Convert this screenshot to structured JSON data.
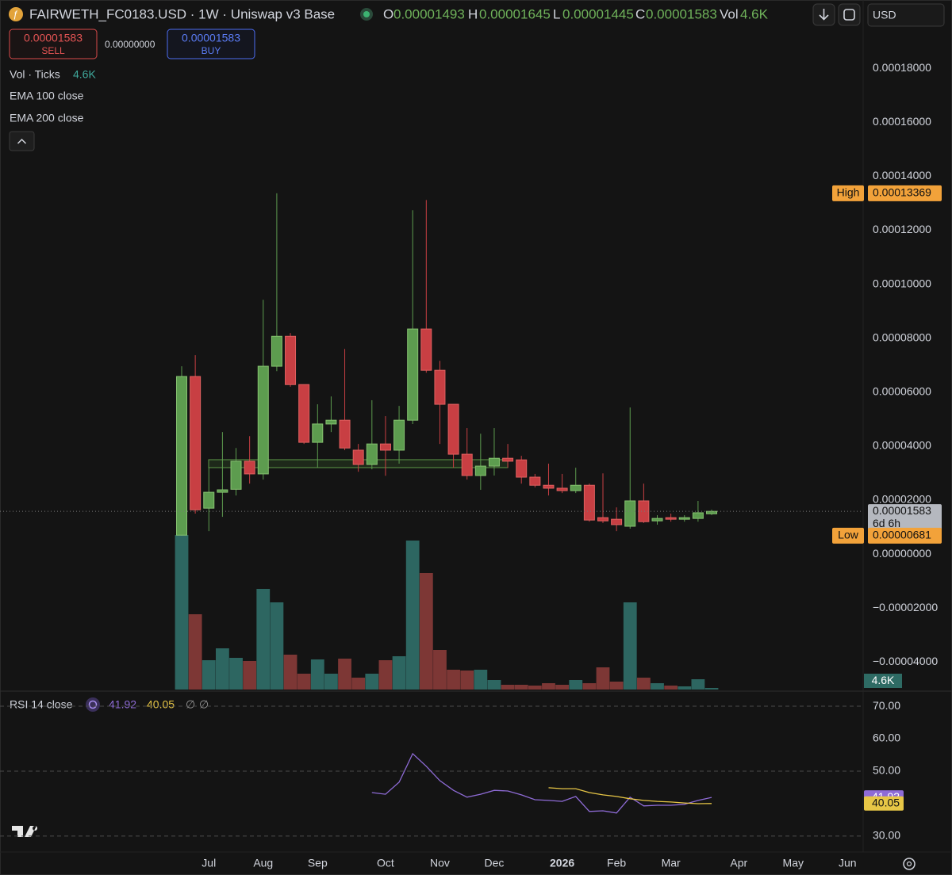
{
  "header": {
    "symbol": "FAIRWETH_FC0183.USD · 1W · Uniswap v3 Base",
    "ohlc_labels": [
      "O",
      "H",
      "L",
      "C"
    ],
    "vol_label": "Vol",
    "currency": "USD"
  },
  "trade": {
    "sell_price": "0.00001583",
    "sell": "SELL",
    "spread": "0.00000000",
    "buy_price": "0.00001583",
    "buy": "BUY"
  },
  "chart_data": [
    {
      "type": "candlestick",
      "indicators": [
        "EMA 100 close",
        "EMA 200 close"
      ],
      "open": [
        7e-06,
        6.58e-05,
        1.7e-05,
        2.29e-05,
        2.4e-05,
        3.44e-05,
        2.97e-05,
        6.96e-05,
        8.07e-05,
        6.28e-05,
        4.14e-05,
        4.82e-05,
        4.96e-05,
        3.85e-05,
        3.32e-05,
        4.08e-05,
        3.85e-05,
        4.96e-05,
        8.34e-05,
        6.81e-05,
        5.55e-05,
        3.7e-05,
        2.91e-05,
        3.26e-05,
        3.55e-05,
        3.49e-05,
        2.85e-05,
        2.55e-05,
        2.44e-05,
        2.35e-05,
        2.55e-05,
        1.35e-05,
        1.29e-05,
        1.03e-05,
        1.97e-05,
        1.23e-05,
        1.35e-05,
        1.29e-05,
        1.32e-05,
        1.493e-05
      ],
      "high": [
        6.96e-05,
        7.37e-05,
        3.2e-05,
        4.52e-05,
        3.93e-05,
        4.37e-05,
        9.42e-05,
        0.00013369,
        8.19e-05,
        6.28e-05,
        5.55e-05,
        5.84e-05,
        7.6e-05,
        4.08e-05,
        5.7e-05,
        5.11e-05,
        5.49e-05,
        0.0001274,
        0.0001312,
        7.16e-05,
        5.55e-05,
        4.67e-05,
        4.46e-05,
        4.67e-05,
        4.08e-05,
        3.64e-05,
        2.97e-05,
        3.35e-05,
        2.97e-05,
        3.2e-05,
        2.61e-05,
        2.99e-05,
        1.73e-05,
        5.43e-05,
        2.61e-05,
        1.44e-05,
        1.5e-05,
        1.44e-05,
        1.97e-05,
        1.645e-05
      ],
      "low": [
        6.81e-06,
        1.5e-05,
        8.5e-06,
        1.38e-05,
        2.17e-05,
        2.61e-05,
        2.76e-05,
        6.78e-05,
        6.2e-05,
        4.08e-05,
        3.2e-05,
        4.52e-05,
        3.85e-05,
        3.05e-05,
        3.14e-05,
        2.9e-05,
        3.35e-05,
        4.82e-05,
        6.72e-05,
        4.08e-05,
        3.2e-05,
        2.76e-05,
        2.38e-05,
        2.91e-05,
        3.2e-05,
        2.61e-05,
        2.47e-05,
        2.17e-05,
        2.26e-05,
        2.26e-05,
        1.2e-05,
        1.15e-05,
        8.5e-06,
        9.4e-06,
        1.15e-05,
        1.09e-05,
        1.2e-05,
        1.2e-05,
        1.2e-05,
        1.445e-05
      ],
      "close": [
        6.58e-05,
        1.64e-05,
        2.29e-05,
        2.38e-05,
        3.44e-05,
        2.97e-05,
        6.96e-05,
        8.07e-05,
        6.28e-05,
        4.14e-05,
        4.82e-05,
        4.96e-05,
        3.93e-05,
        3.32e-05,
        4.08e-05,
        3.85e-05,
        4.96e-05,
        8.34e-05,
        6.81e-05,
        5.55e-05,
        3.7e-05,
        2.91e-05,
        3.26e-05,
        3.55e-05,
        3.44e-05,
        2.85e-05,
        2.55e-05,
        2.44e-05,
        2.35e-05,
        2.55e-05,
        1.26e-05,
        1.23e-05,
        1.09e-05,
        1.97e-05,
        1.2e-05,
        1.32e-05,
        1.29e-05,
        1.35e-05,
        1.53e-05,
        1.583e-05
      ],
      "colors": {
        "up": "#5d9c4f",
        "down": "#c83f43"
      },
      "xlim": [
        -13.37,
        50.15
      ],
      "xticks": [
        {
          "value": 2,
          "label": "Jul"
        },
        {
          "value": 6,
          "label": "Aug"
        },
        {
          "value": 10,
          "label": "Sep"
        },
        {
          "value": 15,
          "label": "Oct"
        },
        {
          "value": 19,
          "label": "Nov"
        },
        {
          "value": 23,
          "label": "Dec"
        },
        {
          "value": 28,
          "label": "2026",
          "bold": true
        },
        {
          "value": 32,
          "label": "Feb"
        },
        {
          "value": 36,
          "label": "Mar"
        },
        {
          "value": 41,
          "label": "Apr"
        },
        {
          "value": 45,
          "label": "May"
        },
        {
          "value": 49,
          "label": "Jun"
        }
      ],
      "ylim": [
        -5.02e-05,
        0.0002053
      ],
      "yticks": [
        {
          "value": 0.00018,
          "label": "0.00018000"
        },
        {
          "value": 0.00016,
          "label": "0.00016000"
        },
        {
          "value": 0.00014,
          "label": "0.00014000"
        },
        {
          "value": 0.00012,
          "label": "0.00012000"
        },
        {
          "value": 0.0001,
          "label": "0.00010000"
        },
        {
          "value": 8e-05,
          "label": "0.00008000"
        },
        {
          "value": 6e-05,
          "label": "0.00006000"
        },
        {
          "value": 4e-05,
          "label": "0.00004000"
        },
        {
          "value": 2e-05,
          "label": "0.00002000"
        },
        {
          "value": 0,
          "label": "0.00000000"
        },
        {
          "value": -2e-05,
          "label": "−0.00002000"
        },
        {
          "value": -4e-05,
          "label": "−0.00004000"
        }
      ],
      "high_marker": {
        "label": "High",
        "value": 0.00013369
      },
      "low_marker": {
        "label": "Low",
        "value": 6.81e-06
      },
      "last_price": {
        "value": 1.583e-05,
        "countdown": "6d 6h"
      }
    },
    {
      "type": "bar",
      "title": "Vol · Ticks",
      "values": [
        448500,
        218500,
        85100,
        119600,
        92000,
        82800,
        292100,
        253000,
        101200,
        46000,
        87400,
        46000,
        89700,
        34500,
        46000,
        85100,
        96600,
        432400,
        338100,
        115000,
        57500,
        55200,
        57500,
        27600,
        13800,
        13800,
        11500,
        18400,
        13800,
        27600,
        18400,
        64400,
        23000,
        253000,
        34500,
        18400,
        11500,
        9200,
        29900,
        4600
      ],
      "value_labels": [
        null,
        null,
        null,
        null,
        null,
        null,
        null,
        null,
        null,
        null,
        null,
        null,
        null,
        null,
        null,
        null,
        null,
        null,
        null,
        null,
        null,
        null,
        null,
        null,
        null,
        null,
        null,
        null,
        null,
        null,
        null,
        null,
        null,
        null,
        null,
        null,
        null,
        null,
        null,
        "4.6K"
      ],
      "ylim": [
        0,
        690000
      ],
      "colors": {
        "up": "#2d6661",
        "down": "#7d3735"
      }
    },
    {
      "type": "line",
      "title": "RSI 14 close",
      "series": [
        {
          "color": "#8e6bd6",
          "values": [
            null,
            null,
            null,
            null,
            null,
            null,
            null,
            null,
            null,
            null,
            null,
            null,
            null,
            null,
            43.4,
            42.9,
            46.6,
            55.4,
            51.5,
            47.1,
            44.1,
            42.0,
            42.9,
            44.1,
            43.9,
            42.7,
            41.2,
            41.0,
            40.7,
            42.2,
            37.6,
            37.8,
            37.1,
            42.0,
            39.3,
            39.5,
            39.5,
            39.8,
            41.0,
            41.92
          ]
        },
        {
          "color": "#e7c646",
          "values": [
            null,
            null,
            null,
            null,
            null,
            null,
            null,
            null,
            null,
            null,
            null,
            null,
            null,
            null,
            null,
            null,
            null,
            null,
            null,
            null,
            null,
            null,
            null,
            null,
            null,
            null,
            null,
            44.9,
            44.6,
            44.6,
            43.4,
            42.7,
            42.2,
            41.5,
            41.0,
            40.7,
            40.5,
            40.2,
            40.0,
            40.05
          ]
        }
      ],
      "extras": [
        "∅",
        "∅"
      ],
      "ylim": [
        25.1,
        72.7
      ],
      "yticks": [
        {
          "value": 70,
          "label": "70.00"
        },
        {
          "value": 60,
          "label": "60.00"
        },
        {
          "value": 50,
          "label": "50.00"
        },
        {
          "value": 40,
          "label": "40.00"
        },
        {
          "value": 30,
          "label": "30.00"
        }
      ],
      "dashed_levels": [
        70,
        50,
        30
      ]
    }
  ]
}
